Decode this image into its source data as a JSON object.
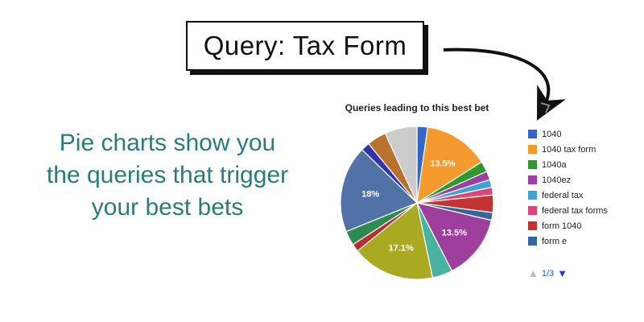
{
  "callout": {
    "query_label": "Query: Tax Form"
  },
  "headline": {
    "lines": [
      "Pie charts show you",
      "the queries that trigger",
      "your best bets"
    ],
    "color": "#2b7a7d"
  },
  "chart_data": {
    "type": "pie",
    "title": "Queries leading to this best bet",
    "slices": [
      {
        "name": "1040",
        "value": 2.2,
        "color": "#3366cc"
      },
      {
        "name": "1040 tax form",
        "value": 13.5,
        "color": "#f59a2e",
        "label": "13.5%"
      },
      {
        "name": "1040a",
        "value": 2.2,
        "color": "#2e9a2e"
      },
      {
        "name": "1040ez",
        "value": 1.8,
        "color": "#9b3fa6"
      },
      {
        "name": "federal tax",
        "value": 1.6,
        "color": "#3fa3d1"
      },
      {
        "name": "federal tax forms",
        "value": 1.6,
        "color": "#dd4477"
      },
      {
        "name": "form 1040",
        "value": 3.6,
        "color": "#c23333"
      },
      {
        "name": "form e",
        "value": 1.6,
        "color": "#336699"
      },
      {
        "value": 13.5,
        "color": "#9e3f9e",
        "label": "13.5%"
      },
      {
        "value": 4.2,
        "color": "#49b3a1"
      },
      {
        "value": 17.1,
        "color": "#aaaa22",
        "label": "17.1%"
      },
      {
        "value": 1.6,
        "color": "#b82e2e"
      },
      {
        "value": 3.0,
        "color": "#2e8b4e"
      },
      {
        "value": 18.0,
        "color": "#5072a7",
        "label": "18%"
      },
      {
        "value": 1.8,
        "color": "#3333aa"
      },
      {
        "value": 4.0,
        "color": "#b8722e"
      },
      {
        "value": 6.7,
        "color": "#cccccc"
      }
    ],
    "legend_position": "right",
    "pager": {
      "current": "1/3"
    }
  }
}
